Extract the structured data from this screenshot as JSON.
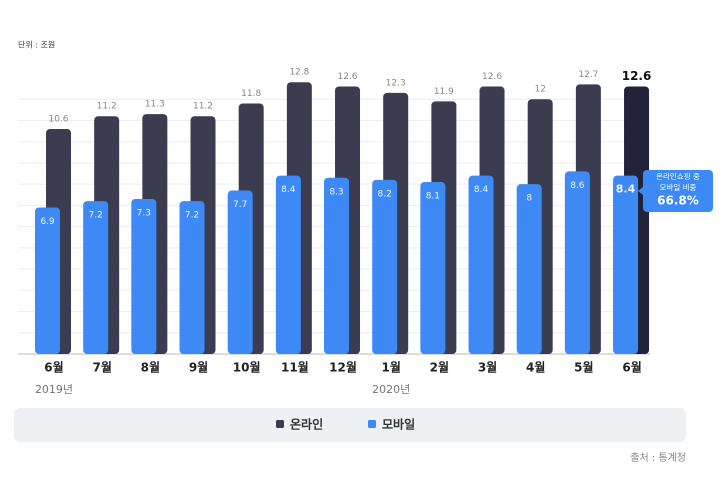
{
  "chart_data": {
    "type": "bar",
    "unit_label": "단위 : 조원",
    "categories": [
      "6월",
      "7월",
      "8월",
      "9월",
      "10월",
      "11월",
      "12월",
      "1월",
      "2월",
      "3월",
      "4월",
      "5월",
      "6월"
    ],
    "year_labels": [
      {
        "index": 0,
        "label": "2019년"
      },
      {
        "index": 7,
        "label": "2020년"
      }
    ],
    "series": [
      {
        "name": "온라인",
        "color": "#3b3c50",
        "values": [
          10.6,
          11.2,
          11.3,
          11.2,
          11.8,
          12.8,
          12.6,
          12.3,
          11.9,
          12.6,
          12.0,
          12.7,
          12.6
        ]
      },
      {
        "name": "모바일",
        "color": "#3d8af7",
        "values": [
          6.9,
          7.2,
          7.3,
          7.2,
          7.7,
          8.4,
          8.3,
          8.2,
          8.1,
          8.4,
          8.0,
          8.6,
          8.4
        ]
      }
    ],
    "ylim": [
      0,
      13
    ],
    "yticks": [
      0,
      1,
      2,
      3,
      4,
      5,
      6,
      7,
      8,
      9,
      10,
      11,
      12
    ],
    "grid": true,
    "annotation": {
      "lines": [
        "온라인쇼핑 중",
        "모바일 비중"
      ],
      "value": 66.8,
      "value_label": "66.8%"
    },
    "source": "출처 : 통계청"
  }
}
